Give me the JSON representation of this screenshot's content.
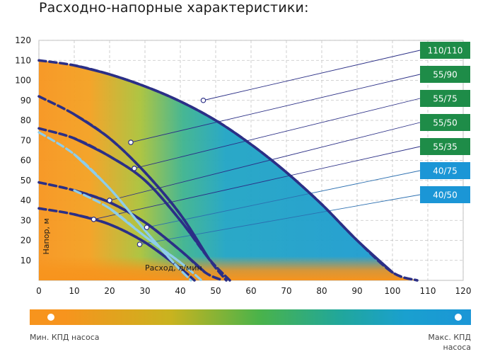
{
  "title": "Расходно-напорные характеристики:",
  "chart_data": {
    "type": "line",
    "xlabel": "Расход, л/мин",
    "ylabel": "Напор, м",
    "xlim": [
      0,
      120
    ],
    "ylim": [
      0,
      120
    ],
    "x_ticks": [
      0,
      10,
      20,
      30,
      40,
      50,
      60,
      70,
      80,
      90,
      100,
      110,
      120
    ],
    "y_ticks": [
      10,
      20,
      30,
      40,
      50,
      60,
      70,
      80,
      90,
      100,
      110,
      120
    ],
    "grid": true,
    "legend_placement": "right",
    "series": [
      {
        "name": "110/110",
        "color": "#2b2f86",
        "tag_color": "#1e8c48",
        "x": [
          0,
          10,
          20,
          30,
          40,
          50,
          60,
          70,
          80,
          90,
          100,
          107
        ],
        "y": [
          110,
          107.5,
          103,
          97,
          89.5,
          80,
          68,
          54,
          38,
          20,
          4,
          0
        ],
        "marker": [
          46.5,
          90
        ]
      },
      {
        "name": "55/90",
        "color": "#2b2f86",
        "tag_color": "#1e8c48",
        "x": [
          0,
          10,
          20,
          30,
          40,
          48,
          53
        ],
        "y": [
          92,
          83,
          71,
          54,
          33,
          11,
          0
        ],
        "marker": [
          26,
          69
        ]
      },
      {
        "name": "55/75",
        "color": "#2b2f86",
        "tag_color": "#1e8c48",
        "x": [
          0,
          10,
          20,
          30,
          40,
          48,
          54
        ],
        "y": [
          76,
          71,
          62,
          50,
          30,
          11,
          0
        ],
        "marker": [
          27,
          56
        ]
      },
      {
        "name": "55/50",
        "color": "#2b2f86",
        "tag_color": "#1e8c48",
        "x": [
          0,
          10,
          20,
          30,
          40,
          47,
          52
        ],
        "y": [
          49,
          45,
          39,
          29,
          15,
          4,
          0
        ],
        "marker": [
          20,
          40
        ]
      },
      {
        "name": "55/35",
        "color": "#2b2f86",
        "tag_color": "#1e8c48",
        "x": [
          0,
          10,
          20,
          30,
          40,
          44
        ],
        "y": [
          36,
          33,
          28,
          19,
          6,
          0
        ],
        "marker": [
          15.5,
          30.5
        ]
      },
      {
        "name": "40/75",
        "color": "#8ecdea",
        "tag_color": "#1b96d6",
        "x": [
          0,
          10,
          20,
          30,
          38,
          43
        ],
        "y": [
          74,
          63,
          46,
          25,
          9,
          0
        ],
        "marker": [
          30.5,
          26.5
        ]
      },
      {
        "name": "40/50",
        "color": "#8ecdea",
        "tag_color": "#1b96d6",
        "x": [
          10,
          20,
          30,
          40,
          46
        ],
        "y": [
          45,
          36,
          22,
          9,
          0
        ],
        "marker": [
          28.5,
          18
        ]
      }
    ]
  },
  "efficiency_scale": {
    "min_label": "Мин. КПД насоса",
    "max_label": "Макс. КПД насоса",
    "min_color": "#f7941d",
    "max_color": "#1b96d6"
  }
}
